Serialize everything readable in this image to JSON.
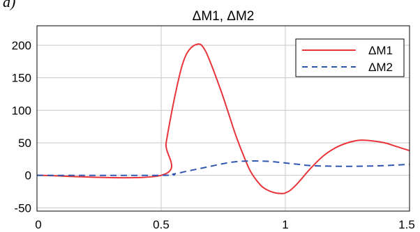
{
  "panel_label": "a)",
  "chart_data": {
    "type": "line",
    "title": "ΔM1, ΔM2",
    "xlabel": "",
    "ylabel": "",
    "xlim": [
      0,
      1.5
    ],
    "ylim": [
      -55,
      230
    ],
    "xticks": [
      0,
      0.5,
      1,
      1.5
    ],
    "xtick_labels": [
      "0",
      "0.5",
      "1",
      "1.5"
    ],
    "yticks": [
      -50,
      0,
      50,
      100,
      150,
      200
    ],
    "ytick_labels": [
      "-50",
      "0",
      "50",
      "100",
      "150",
      "200"
    ],
    "grid": true,
    "legend_position": "top-right",
    "series": [
      {
        "name": "ΔM1",
        "color": "#e8343a",
        "dash": "solid",
        "x": [
          0,
          0.5,
          0.52,
          0.55,
          0.58,
          0.6,
          0.62,
          0.64,
          0.66,
          0.68,
          0.7,
          0.72,
          0.75,
          0.78,
          0.8,
          0.83,
          0.86,
          0.9,
          0.93,
          0.96,
          0.99,
          1.0,
          1.02,
          1.05,
          1.1,
          1.15,
          1.2,
          1.25,
          1.3,
          1.35,
          1.4,
          1.45,
          1.5
        ],
        "y": [
          0,
          0,
          50,
          112,
          163,
          185,
          196,
          201,
          201,
          190,
          172,
          152,
          120,
          85,
          62,
          32,
          6,
          -15,
          -23,
          -27,
          -28,
          -27,
          -23,
          -12,
          10,
          29,
          42,
          50,
          54,
          53,
          50,
          44,
          38
        ]
      },
      {
        "name": "ΔM2",
        "color": "#2f56b0",
        "dash": "dashed",
        "x": [
          0,
          0.5,
          0.55,
          0.6,
          0.65,
          0.7,
          0.75,
          0.8,
          0.85,
          0.9,
          0.95,
          1.0,
          1.05,
          1.1,
          1.2,
          1.3,
          1.4,
          1.5
        ],
        "y": [
          0,
          0,
          2,
          6,
          10,
          14,
          18,
          21,
          22,
          22,
          21,
          19,
          17,
          15,
          14,
          14,
          15,
          17
        ]
      }
    ]
  }
}
